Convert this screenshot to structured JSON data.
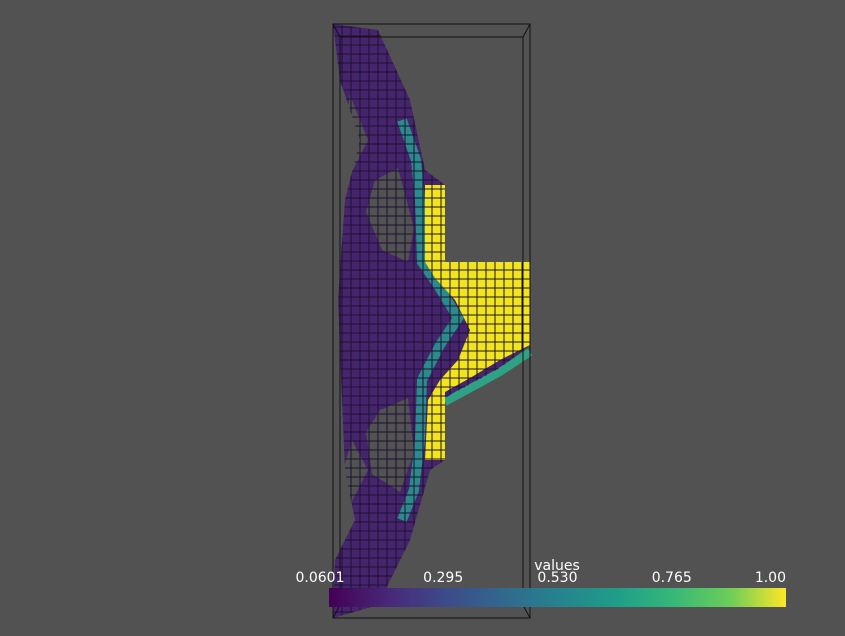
{
  "colorbar": {
    "title": "values",
    "range": [
      0.0601,
      1
    ],
    "ticks": [
      0.0601,
      0.295,
      {
        "value": 0.53,
        "label": "0.530"
      },
      0.765,
      {
        "value": 1,
        "label": "1.00"
      }
    ]
  }
}
